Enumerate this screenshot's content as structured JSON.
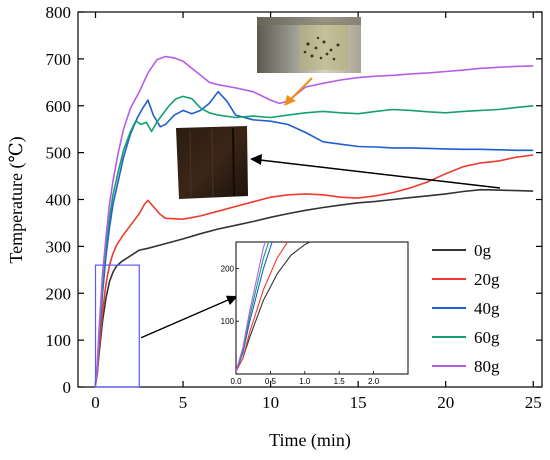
{
  "chart_data": {
    "type": "line",
    "title": "",
    "xlabel": "Time (min)",
    "ylabel": "Temperature (℃)",
    "xlim": [
      -1,
      25.5
    ],
    "ylim": [
      0,
      800
    ],
    "xticks": [
      0,
      5,
      10,
      15,
      20,
      25
    ],
    "yticks": [
      0,
      100,
      200,
      300,
      400,
      500,
      600,
      700,
      800
    ],
    "grid": false,
    "legend_position": "right-middle",
    "series": [
      {
        "name": "0g",
        "color": "#333333",
        "x": [
          0,
          0.1,
          0.2,
          0.4,
          0.6,
          0.8,
          1,
          1.2,
          1.5,
          2,
          2.5,
          3,
          4,
          5,
          6,
          7,
          8,
          9,
          10,
          11,
          12,
          13,
          14,
          15,
          16,
          17,
          18,
          19,
          20,
          21,
          22,
          23,
          24,
          25
        ],
        "values": [
          5,
          30,
          70,
          140,
          190,
          225,
          245,
          258,
          268,
          280,
          292,
          296,
          306,
          316,
          327,
          337,
          345,
          353,
          362,
          370,
          377,
          383,
          388,
          393,
          396,
          400,
          404,
          408,
          412,
          417,
          421,
          420,
          419,
          418
        ]
      },
      {
        "name": "20g",
        "color": "#ee3b2e",
        "x": [
          0,
          0.1,
          0.2,
          0.4,
          0.6,
          0.8,
          1,
          1.2,
          1.5,
          2,
          2.5,
          2.8,
          3,
          3.3,
          3.7,
          4,
          5,
          6,
          7,
          8,
          9,
          10,
          11,
          12,
          13,
          14,
          15,
          16,
          17,
          18,
          19,
          20,
          21,
          22,
          23,
          24,
          25
        ],
        "values": [
          5,
          30,
          80,
          160,
          220,
          260,
          285,
          302,
          320,
          345,
          370,
          390,
          398,
          385,
          368,
          360,
          358,
          365,
          375,
          385,
          395,
          405,
          410,
          412,
          410,
          405,
          403,
          408,
          415,
          425,
          438,
          455,
          470,
          478,
          482,
          490,
          495
        ]
      },
      {
        "name": "40g",
        "color": "#1f5fcf",
        "x": [
          0,
          0.1,
          0.2,
          0.4,
          0.6,
          0.8,
          1,
          1.3,
          1.6,
          2,
          2.4,
          2.7,
          3,
          3.3,
          3.7,
          4,
          4.5,
          5,
          5.5,
          6,
          6.5,
          7,
          7.5,
          8,
          9,
          10,
          11,
          12,
          13,
          14,
          15,
          16,
          17,
          18,
          19,
          20,
          21,
          22,
          23,
          24,
          25
        ],
        "values": [
          5,
          40,
          100,
          200,
          280,
          340,
          390,
          440,
          490,
          540,
          575,
          595,
          612,
          580,
          555,
          560,
          580,
          590,
          583,
          590,
          605,
          630,
          610,
          580,
          570,
          567,
          560,
          543,
          523,
          518,
          513,
          512,
          510,
          510,
          509,
          508,
          507,
          507,
          506,
          505,
          505
        ]
      },
      {
        "name": "60g",
        "color": "#15a06e",
        "x": [
          0,
          0.1,
          0.2,
          0.4,
          0.6,
          0.8,
          1,
          1.3,
          1.6,
          2,
          2.3,
          2.6,
          2.9,
          3.2,
          3.5,
          3.8,
          4.2,
          4.6,
          5,
          5.5,
          6,
          6.5,
          7,
          8,
          9,
          10,
          11,
          12,
          13,
          14,
          15,
          16,
          17,
          18,
          19,
          20,
          21,
          22,
          23,
          24,
          25
        ],
        "values": [
          5,
          45,
          110,
          220,
          300,
          360,
          410,
          460,
          505,
          545,
          568,
          560,
          565,
          545,
          565,
          580,
          600,
          615,
          620,
          615,
          595,
          585,
          580,
          575,
          578,
          575,
          580,
          585,
          588,
          585,
          583,
          588,
          592,
          590,
          587,
          585,
          588,
          590,
          592,
          596,
          600
        ]
      },
      {
        "name": "80g",
        "color": "#b65de8",
        "x": [
          0,
          0.1,
          0.2,
          0.4,
          0.6,
          0.8,
          1,
          1.3,
          1.6,
          2,
          2.5,
          3,
          3.5,
          4,
          4.5,
          5,
          5.5,
          6,
          6.5,
          7,
          8,
          9,
          10,
          10.5,
          11,
          11.5,
          12,
          13,
          14,
          15,
          16,
          17,
          18,
          19,
          20,
          21,
          22,
          23,
          24,
          25
        ],
        "values": [
          5,
          50,
          120,
          240,
          320,
          390,
          440,
          500,
          550,
          595,
          630,
          670,
          698,
          705,
          702,
          695,
          680,
          665,
          650,
          645,
          638,
          630,
          612,
          605,
          610,
          625,
          640,
          648,
          655,
          660,
          663,
          665,
          668,
          670,
          673,
          676,
          680,
          682,
          684,
          685
        ]
      }
    ],
    "inset": {
      "xlim": [
        0,
        2.5
      ],
      "ylim": [
        0,
        250
      ],
      "xticks": [
        0.0,
        0.5,
        1.0,
        1.5,
        2.0
      ],
      "xtick_labels": [
        "0.0",
        "0.5",
        "1.0",
        "1.5",
        "2.0"
      ],
      "yticks": [
        100,
        200
      ],
      "ytick_labels": [
        "100",
        "200"
      ]
    }
  },
  "decorations": {
    "highlight_box_color": "#5a5aff",
    "orange_arrow_color": "#f0901c",
    "photo_reactor": "reactor-photo",
    "photo_sample": "charred-sample-photo"
  }
}
